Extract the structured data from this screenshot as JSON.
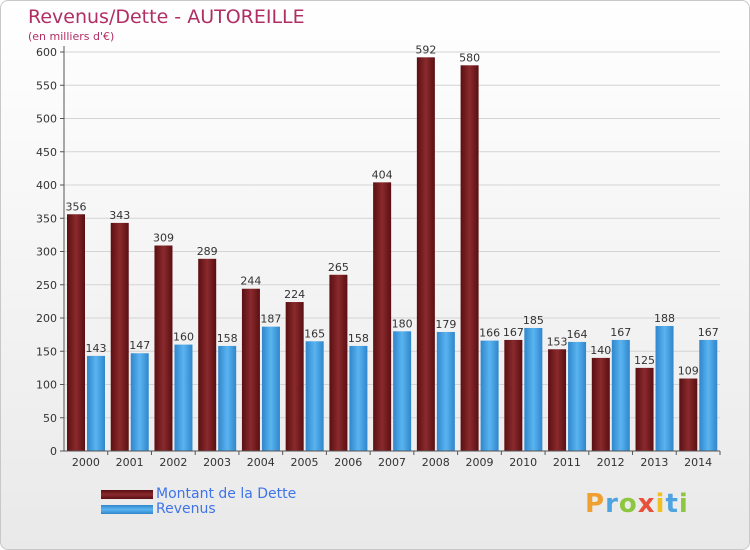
{
  "header": {
    "title": "Revenus/Dette - AUTOREILLE",
    "subtitle": "(en milliers d'€)"
  },
  "colors": {
    "title": "#b02e63",
    "debt_bar": "#7a1c1f",
    "revenue_bar": "#4aa6e8",
    "legend_text": "#3f74e8"
  },
  "chart_data": {
    "type": "bar",
    "title": "Revenus/Dette - AUTOREILLE",
    "ylabel": "(en milliers d'€)",
    "xlabel": "",
    "ylim": [
      0,
      600
    ],
    "yticks": [
      0,
      50,
      100,
      150,
      200,
      250,
      300,
      350,
      400,
      450,
      500,
      550,
      600
    ],
    "grid": true,
    "legend_position": "bottom-left",
    "categories": [
      "2000",
      "2001",
      "2002",
      "2003",
      "2004",
      "2005",
      "2006",
      "2007",
      "2008",
      "2009",
      "2010",
      "2011",
      "2012",
      "2013",
      "2014"
    ],
    "series": [
      {
        "name": "Montant de la Dette",
        "color": "#7a1c1f",
        "values": [
          356,
          343,
          309,
          289,
          244,
          224,
          265,
          404,
          592,
          580,
          167,
          153,
          140,
          125,
          109
        ]
      },
      {
        "name": "Revenus",
        "color": "#4aa6e8",
        "values": [
          143,
          147,
          160,
          158,
          187,
          165,
          158,
          180,
          179,
          166,
          185,
          164,
          167,
          188,
          167
        ]
      }
    ]
  },
  "logo": {
    "text": "Proxiti",
    "letters": [
      "P",
      "r",
      "o",
      "x",
      "i",
      "t",
      "i"
    ]
  }
}
